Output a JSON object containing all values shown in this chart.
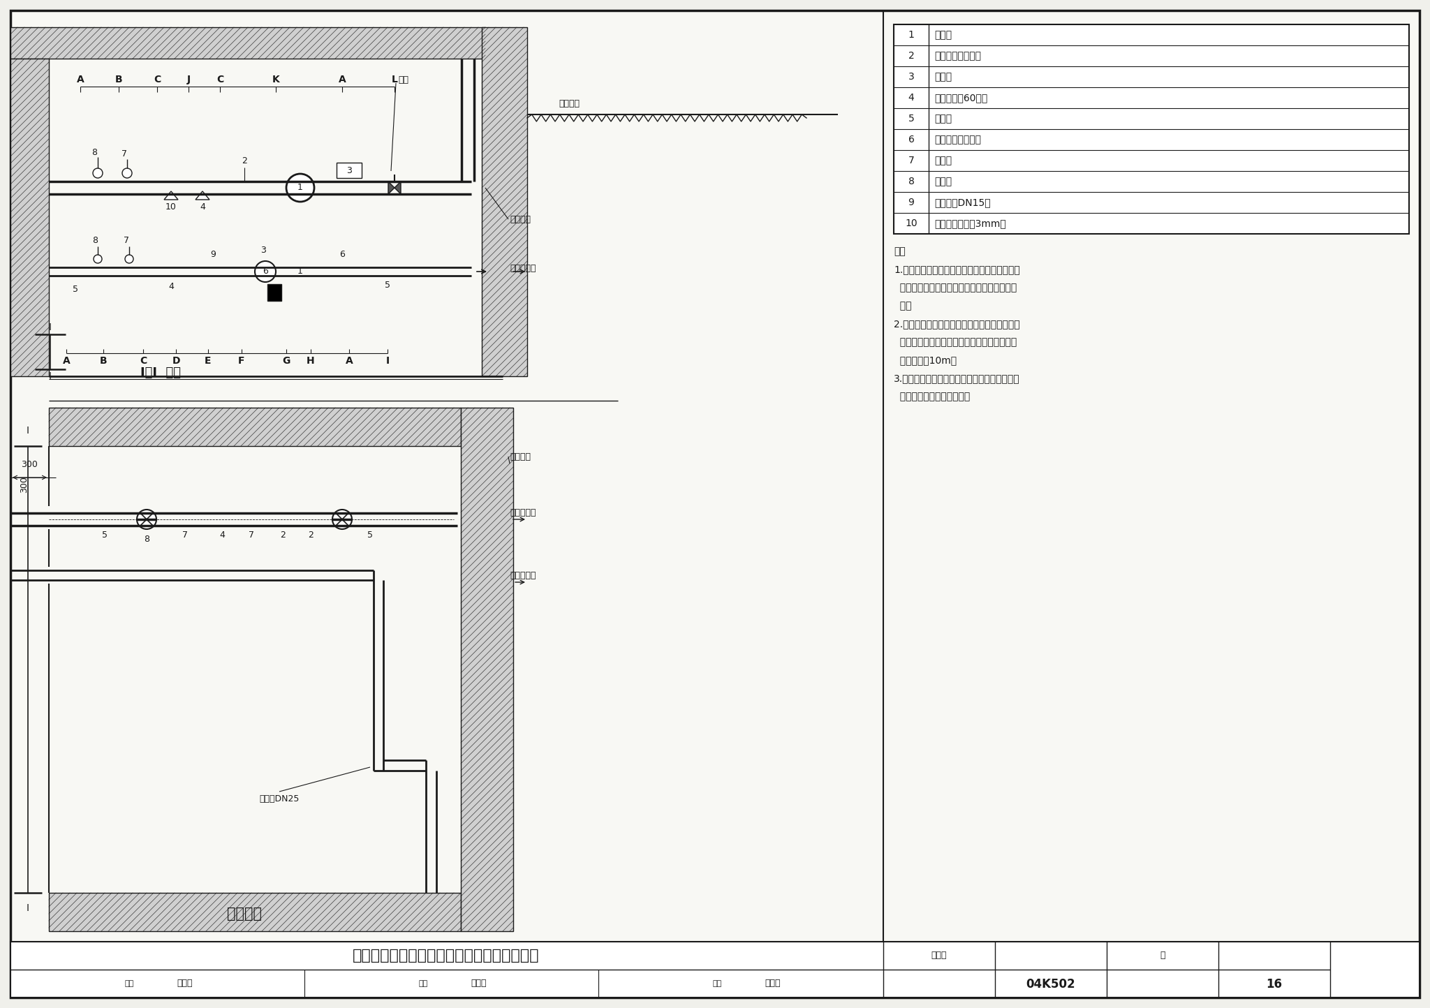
{
  "bg_color": "#f0f0eb",
  "line_color": "#1a1a1a",
  "title": "热水采暖系统热力入口（地下室）安装（一）",
  "page_num": "16",
  "atlas_num": "04K502",
  "legend_items": [
    [
      "1",
      "流量计"
    ],
    [
      "2",
      "温度、压力传感器"
    ],
    [
      "3",
      "积分仪"
    ],
    [
      "4",
      "水过滤器（60目）"
    ],
    [
      "5",
      "截止阀"
    ],
    [
      "6",
      "自力式压差控制阀"
    ],
    [
      "7",
      "压力表"
    ],
    [
      "8",
      "温度计"
    ],
    [
      "9",
      "逆水阀（DN15）"
    ],
    [
      "10",
      "水过滤器（孔径3mm）"
    ]
  ],
  "notes": [
    "注：",
    "1.本图示为热力入口设于建筑物地下室。若室内",
    "  系统安装自力式压差控制阀，此处不应重复设",
    "  置。",
    "2.流量计和积分仪可采用整体式热量表或分体式",
    "  热量表。当为分体式时，积分仪与流量计的距",
    "  离不宜超过10m。",
    "3.温度、压力传感器分别由热量表和自力式压差",
    "  控制阀供货厂家配套供给。"
  ],
  "section_label": "I－I  剖面",
  "plan_label": "入口平面",
  "top_labels": [
    "A",
    "B",
    "C",
    "J",
    "C",
    "K",
    "A",
    "L"
  ],
  "bottom_labels": [
    "A",
    "B",
    "C",
    "D",
    "E",
    "F",
    "G",
    "H",
    "A",
    "I"
  ],
  "staff_row": [
    [
      "审核",
      "孙智华",
      "校对",
      "仿御璋",
      "设计",
      "赵立民"
    ]
  ]
}
